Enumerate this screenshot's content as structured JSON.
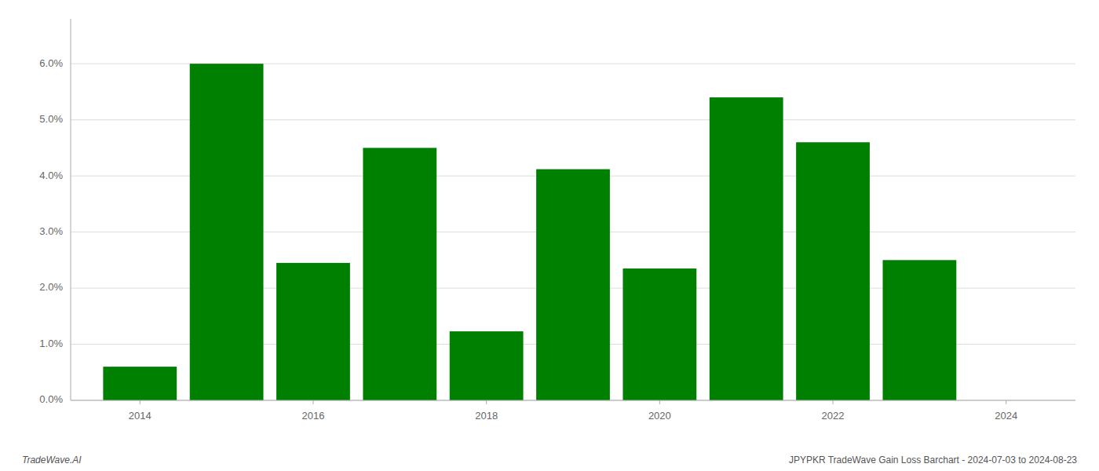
{
  "chart_data": {
    "type": "bar",
    "x": [
      2014,
      2015,
      2016,
      2017,
      2018,
      2019,
      2020,
      2021,
      2022,
      2023
    ],
    "values": [
      0.006,
      0.06,
      0.0245,
      0.045,
      0.0123,
      0.0412,
      0.0235,
      0.054,
      0.046,
      0.025
    ],
    "color": "#008000",
    "xlim": [
      2013.2,
      2024.8
    ],
    "xticks": [
      2014,
      2016,
      2018,
      2020,
      2022,
      2024
    ],
    "ylim": [
      0,
      0.068
    ],
    "yticks": [
      {
        "value": 0.0,
        "label": "0.0%"
      },
      {
        "value": 0.01,
        "label": "1.0%"
      },
      {
        "value": 0.02,
        "label": "2.0%"
      },
      {
        "value": 0.03,
        "label": "3.0%"
      },
      {
        "value": 0.04,
        "label": "4.0%"
      },
      {
        "value": 0.05,
        "label": "5.0%"
      },
      {
        "value": 0.06,
        "label": "6.0%"
      }
    ],
    "grid": true,
    "annotations": [
      "TradeWave.AI",
      "JPYPKR TradeWave Gain Loss Barchart - 2024-07-03 to 2024-08-23"
    ]
  }
}
